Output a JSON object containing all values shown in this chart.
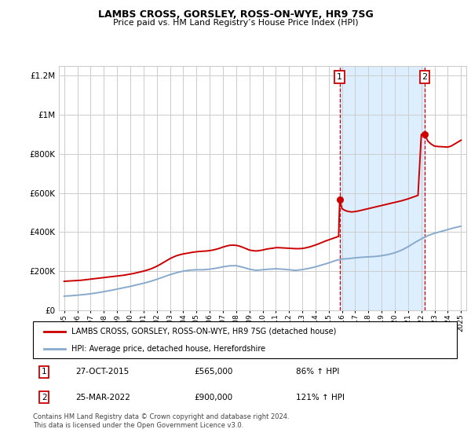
{
  "title": "LAMBS CROSS, GORSLEY, ROSS-ON-WYE, HR9 7SG",
  "subtitle": "Price paid vs. HM Land Registry’s House Price Index (HPI)",
  "legend_line1": "LAMBS CROSS, GORSLEY, ROSS-ON-WYE, HR9 7SG (detached house)",
  "legend_line2": "HPI: Average price, detached house, Herefordshire",
  "annotation1": {
    "label": "1",
    "date": "27-OCT-2015",
    "price": "£565,000",
    "hpi": "86% ↑ HPI"
  },
  "annotation2": {
    "label": "2",
    "date": "25-MAR-2022",
    "price": "£900,000",
    "hpi": "121% ↑ HPI"
  },
  "footer": "Contains HM Land Registry data © Crown copyright and database right 2024.\nThis data is licensed under the Open Government Licence v3.0.",
  "red_color": "#cc0000",
  "blue_color": "#88aacc",
  "annotation_box_color": "#cc0000",
  "shaded_color": "#ddeeff",
  "vline_color": "#cc0000",
  "grid_color": "#cccccc",
  "red_line": {
    "x": [
      1995.0,
      1995.25,
      1995.5,
      1995.75,
      1996.0,
      1996.25,
      1996.5,
      1996.75,
      1997.0,
      1997.25,
      1997.5,
      1997.75,
      1998.0,
      1998.25,
      1998.5,
      1998.75,
      1999.0,
      1999.25,
      1999.5,
      1999.75,
      2000.0,
      2000.25,
      2000.5,
      2000.75,
      2001.0,
      2001.25,
      2001.5,
      2001.75,
      2002.0,
      2002.25,
      2002.5,
      2002.75,
      2003.0,
      2003.25,
      2003.5,
      2003.75,
      2004.0,
      2004.25,
      2004.5,
      2004.75,
      2005.0,
      2005.25,
      2005.5,
      2005.75,
      2006.0,
      2006.25,
      2006.5,
      2006.75,
      2007.0,
      2007.25,
      2007.5,
      2007.75,
      2008.0,
      2008.25,
      2008.5,
      2008.75,
      2009.0,
      2009.25,
      2009.5,
      2009.75,
      2010.0,
      2010.25,
      2010.5,
      2010.75,
      2011.0,
      2011.25,
      2011.5,
      2011.75,
      2012.0,
      2012.25,
      2012.5,
      2012.75,
      2013.0,
      2013.25,
      2013.5,
      2013.75,
      2014.0,
      2014.25,
      2014.5,
      2014.75,
      2015.0,
      2015.25,
      2015.5,
      2015.75,
      2015.83,
      2016.0,
      2016.25,
      2016.5,
      2016.75,
      2017.0,
      2017.25,
      2017.5,
      2017.75,
      2018.0,
      2018.25,
      2018.5,
      2018.75,
      2019.0,
      2019.25,
      2019.5,
      2019.75,
      2020.0,
      2020.25,
      2020.5,
      2020.75,
      2021.0,
      2021.25,
      2021.5,
      2021.75,
      2022.0,
      2022.25,
      2022.5,
      2022.75,
      2023.0,
      2023.25,
      2023.5,
      2023.75,
      2024.0,
      2024.25,
      2024.5,
      2024.75,
      2025.0
    ],
    "y": [
      148000,
      149000,
      150000,
      151000,
      152000,
      153000,
      155000,
      157000,
      159000,
      161000,
      163000,
      165000,
      167000,
      169000,
      171000,
      173000,
      175000,
      177000,
      179000,
      182000,
      185000,
      188000,
      192000,
      196000,
      200000,
      205000,
      210000,
      217000,
      225000,
      234000,
      244000,
      254000,
      264000,
      272000,
      279000,
      284000,
      288000,
      291000,
      294000,
      297000,
      299000,
      301000,
      302000,
      303000,
      305000,
      308000,
      312000,
      317000,
      323000,
      328000,
      332000,
      333000,
      332000,
      328000,
      322000,
      315000,
      308000,
      305000,
      303000,
      305000,
      308000,
      312000,
      315000,
      317000,
      320000,
      320000,
      319000,
      318000,
      317000,
      316000,
      315000,
      315000,
      316000,
      319000,
      323000,
      328000,
      334000,
      340000,
      347000,
      354000,
      360000,
      366000,
      372000,
      378000,
      565000,
      520000,
      510000,
      505000,
      503000,
      505000,
      508000,
      512000,
      516000,
      520000,
      524000,
      528000,
      532000,
      536000,
      540000,
      544000,
      548000,
      552000,
      556000,
      560000,
      565000,
      570000,
      576000,
      582000,
      588000,
      900000,
      900000,
      865000,
      850000,
      840000,
      838000,
      837000,
      836000,
      835000,
      840000,
      850000,
      860000,
      870000
    ]
  },
  "blue_line": {
    "x": [
      1995.0,
      1995.5,
      1996.0,
      1996.5,
      1997.0,
      1997.5,
      1998.0,
      1998.5,
      1999.0,
      1999.5,
      2000.0,
      2000.5,
      2001.0,
      2001.5,
      2002.0,
      2002.5,
      2003.0,
      2003.5,
      2004.0,
      2004.5,
      2005.0,
      2005.5,
      2006.0,
      2006.5,
      2007.0,
      2007.5,
      2008.0,
      2008.5,
      2009.0,
      2009.5,
      2010.0,
      2010.5,
      2011.0,
      2011.5,
      2012.0,
      2012.5,
      2013.0,
      2013.5,
      2014.0,
      2014.5,
      2015.0,
      2015.5,
      2016.0,
      2016.5,
      2017.0,
      2017.5,
      2018.0,
      2018.5,
      2019.0,
      2019.5,
      2020.0,
      2020.5,
      2021.0,
      2021.5,
      2022.0,
      2022.5,
      2023.0,
      2023.5,
      2024.0,
      2024.5,
      2025.0
    ],
    "y": [
      72000,
      74000,
      77000,
      80000,
      84000,
      89000,
      95000,
      101000,
      108000,
      115000,
      122000,
      130000,
      138000,
      147000,
      158000,
      170000,
      182000,
      192000,
      200000,
      205000,
      207000,
      207000,
      210000,
      215000,
      222000,
      227000,
      228000,
      220000,
      210000,
      204000,
      207000,
      210000,
      212000,
      210000,
      207000,
      204000,
      208000,
      214000,
      222000,
      232000,
      242000,
      254000,
      262000,
      264000,
      268000,
      271000,
      273000,
      275000,
      279000,
      285000,
      294000,
      307000,
      325000,
      346000,
      365000,
      382000,
      394000,
      403000,
      413000,
      422000,
      430000
    ]
  },
  "point1_x": 2015.83,
  "point1_y": 565000,
  "point2_x": 2022.25,
  "point2_y": 900000,
  "ylim": [
    0,
    1250000
  ],
  "xlim": [
    1994.6,
    2025.4
  ]
}
